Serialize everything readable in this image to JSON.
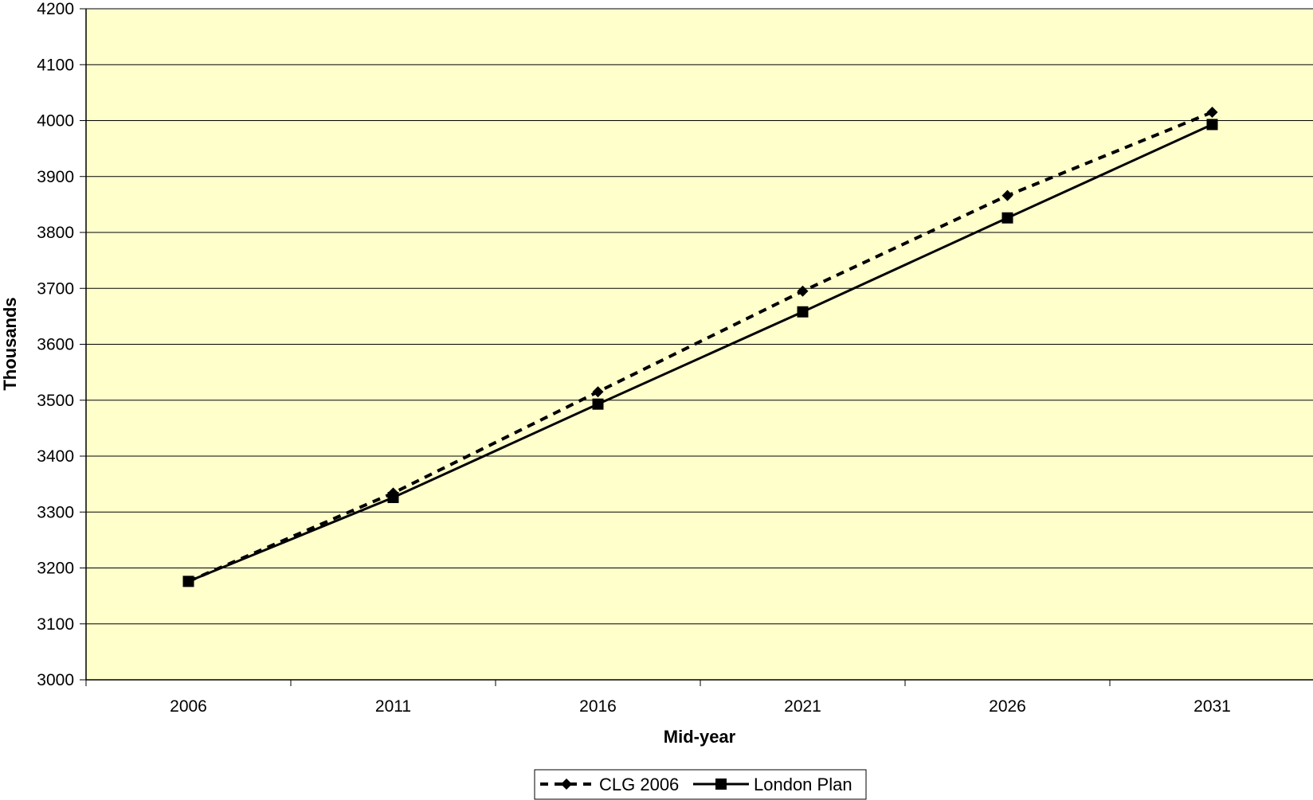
{
  "chart_data": {
    "type": "line",
    "title": "",
    "xlabel": "Mid-year",
    "ylabel": "Thousands",
    "x": [
      "2006",
      "2011",
      "2016",
      "2021",
      "2026",
      "2031"
    ],
    "ylim": [
      3000,
      4200
    ],
    "yticks": [
      "3000",
      "3100",
      "3200",
      "3300",
      "3400",
      "3500",
      "3600",
      "3700",
      "3800",
      "3900",
      "4000",
      "4100",
      "4200"
    ],
    "grid": true,
    "legend_position": "bottom",
    "plot_background": "#ffffcc",
    "series": [
      {
        "name": "CLG 2006",
        "line_style": "dashed",
        "marker": "diamond",
        "color": "#000000",
        "values": [
          3176,
          3334,
          3515,
          3695,
          3866,
          4015
        ]
      },
      {
        "name": "London Plan",
        "line_style": "solid",
        "marker": "square",
        "color": "#000000",
        "values": [
          3176,
          3326,
          3493,
          3658,
          3826,
          3993
        ]
      }
    ]
  }
}
